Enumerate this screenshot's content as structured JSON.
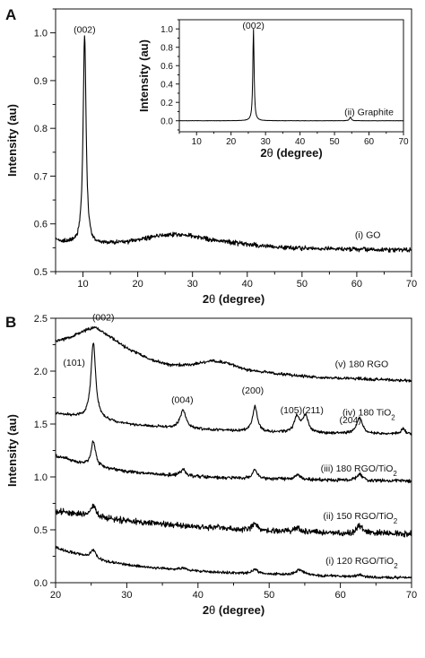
{
  "chart_data": [
    {
      "panel": "A",
      "type": "line",
      "xlabel": "2θ (degree)",
      "ylabel": "Intensity (au)",
      "xlim": [
        5,
        70
      ],
      "ylim": [
        0.5,
        1.05
      ],
      "xticks": [
        10,
        20,
        30,
        40,
        50,
        60,
        70
      ],
      "yticks": [
        0.5,
        0.6,
        0.7,
        0.8,
        0.9,
        1.0
      ],
      "series": [
        {
          "name": "(i) GO",
          "baseline": [
            [
              5,
              0.565
            ],
            [
              9,
              0.558
            ],
            [
              10,
              0.56
            ],
            [
              12,
              0.556
            ],
            [
              15,
              0.56
            ],
            [
              18,
              0.562
            ],
            [
              21,
              0.568
            ],
            [
              24,
              0.576
            ],
            [
              27,
              0.578
            ],
            [
              30,
              0.575
            ],
            [
              33,
              0.568
            ],
            [
              36,
              0.562
            ],
            [
              40,
              0.558
            ],
            [
              45,
              0.552
            ],
            [
              50,
              0.549
            ],
            [
              55,
              0.548
            ],
            [
              60,
              0.547
            ],
            [
              65,
              0.546
            ],
            [
              70,
              0.545
            ]
          ],
          "peaks": [
            {
              "x": 10.3,
              "height": 0.44,
              "width": 0.32
            }
          ],
          "noise": 0.006
        }
      ],
      "annotations": [
        {
          "text": "(002)",
          "x": 10.3,
          "y": 1.0
        },
        {
          "text": "(i) GO",
          "x": 62,
          "y": 0.57
        }
      ],
      "inset": {
        "type": "line",
        "xlabel": "2θ (degree)",
        "ylabel": "Intensity (au)",
        "xlim": [
          5,
          70
        ],
        "ylim": [
          -0.12,
          1.1
        ],
        "xticks": [
          10,
          20,
          30,
          40,
          50,
          60,
          70
        ],
        "yticks": [
          0.0,
          0.2,
          0.4,
          0.6,
          0.8,
          1.0
        ],
        "series": [
          {
            "name": "(ii) Graphite",
            "baseline": [
              [
                5,
                0.0
              ],
              [
                70,
                0.0
              ]
            ],
            "peaks": [
              {
                "x": 26.5,
                "height": 1.0,
                "width": 0.22
              },
              {
                "x": 54.6,
                "height": 0.04,
                "width": 0.3
              }
            ],
            "noise": 0.002
          }
        ],
        "annotations": [
          {
            "text": "(002)",
            "x": 26.5,
            "y": 1.0
          },
          {
            "text": "(ii) Graphite",
            "x": 60,
            "y": 0.06
          }
        ]
      }
    },
    {
      "panel": "B",
      "type": "line",
      "xlabel": "2θ (degree)",
      "ylabel": "Intensity (au)",
      "xlim": [
        20,
        70
      ],
      "ylim": [
        0.0,
        2.5
      ],
      "xticks": [
        20,
        30,
        40,
        50,
        60,
        70
      ],
      "yticks": [
        0.0,
        0.5,
        1.0,
        1.5,
        2.0,
        2.5
      ],
      "series": [
        {
          "name": "(v) 180 RGO",
          "baseline": [
            [
              20,
              2.28
            ],
            [
              22,
              2.32
            ],
            [
              24,
              2.38
            ],
            [
              25.5,
              2.42
            ],
            [
              27,
              2.35
            ],
            [
              30,
              2.22
            ],
            [
              33,
              2.12
            ],
            [
              36,
              2.06
            ],
            [
              39,
              2.06
            ],
            [
              42,
              2.1
            ],
            [
              44,
              2.08
            ],
            [
              47,
              2.01
            ],
            [
              52,
              1.97
            ],
            [
              57,
              1.94
            ],
            [
              62,
              1.93
            ],
            [
              66,
              1.92
            ],
            [
              70,
              1.91
            ]
          ],
          "peaks": [],
          "noise": 0.018
        },
        {
          "name": "(iv) 180 TiO2",
          "baseline": [
            [
              20,
              1.6
            ],
            [
              23,
              1.57
            ],
            [
              30,
              1.5
            ],
            [
              35,
              1.47
            ],
            [
              40,
              1.45
            ],
            [
              50,
              1.42
            ],
            [
              60,
              1.41
            ],
            [
              70,
              1.4
            ]
          ],
          "peaks": [
            {
              "x": 25.3,
              "height": 0.72,
              "width": 0.4
            },
            {
              "x": 37.9,
              "height": 0.17,
              "width": 0.5
            },
            {
              "x": 48.0,
              "height": 0.24,
              "width": 0.4
            },
            {
              "x": 53.9,
              "height": 0.15,
              "width": 0.45
            },
            {
              "x": 55.1,
              "height": 0.16,
              "width": 0.45
            },
            {
              "x": 62.7,
              "height": 0.15,
              "width": 0.5
            },
            {
              "x": 68.8,
              "height": 0.05,
              "width": 0.4
            }
          ],
          "noise": 0.016
        },
        {
          "name": "(iii) 180 RGO/TiO2",
          "baseline": [
            [
              20,
              1.2
            ],
            [
              25,
              1.1
            ],
            [
              30,
              1.05
            ],
            [
              35,
              1.02
            ],
            [
              40,
              1.0
            ],
            [
              50,
              0.98
            ],
            [
              60,
              0.97
            ],
            [
              70,
              0.96
            ]
          ],
          "peaks": [
            {
              "x": 25.3,
              "height": 0.24,
              "width": 0.38
            },
            {
              "x": 37.9,
              "height": 0.06,
              "width": 0.45
            },
            {
              "x": 48.0,
              "height": 0.08,
              "width": 0.4
            },
            {
              "x": 54.0,
              "height": 0.05,
              "width": 0.45
            },
            {
              "x": 62.7,
              "height": 0.06,
              "width": 0.45
            }
          ],
          "noise": 0.02
        },
        {
          "name": "(ii) 150 RGO/TiO2",
          "baseline": [
            [
              20,
              0.68
            ],
            [
              24,
              0.64
            ],
            [
              28,
              0.6
            ],
            [
              32,
              0.57
            ],
            [
              36,
              0.55
            ],
            [
              40,
              0.53
            ],
            [
              45,
              0.51
            ],
            [
              50,
              0.49
            ],
            [
              55,
              0.48
            ],
            [
              60,
              0.47
            ],
            [
              65,
              0.47
            ],
            [
              70,
              0.46
            ]
          ],
          "peaks": [
            {
              "x": 25.3,
              "height": 0.11,
              "width": 0.4
            },
            {
              "x": 48.0,
              "height": 0.06,
              "width": 0.4
            },
            {
              "x": 54.0,
              "height": 0.04,
              "width": 0.45
            },
            {
              "x": 62.7,
              "height": 0.07,
              "width": 0.45
            }
          ],
          "noise": 0.035
        },
        {
          "name": "(i) 120 RGO/TiO2",
          "baseline": [
            [
              20,
              0.33
            ],
            [
              23,
              0.27
            ],
            [
              27,
              0.2
            ],
            [
              30,
              0.17
            ],
            [
              34,
              0.14
            ],
            [
              40,
              0.11
            ],
            [
              45,
              0.09
            ],
            [
              50,
              0.08
            ],
            [
              55,
              0.07
            ],
            [
              60,
              0.06
            ],
            [
              65,
              0.05
            ],
            [
              70,
              0.05
            ]
          ],
          "peaks": [
            {
              "x": 25.3,
              "height": 0.08,
              "width": 0.45
            },
            {
              "x": 37.9,
              "height": 0.02,
              "width": 0.5
            },
            {
              "x": 48.0,
              "height": 0.04,
              "width": 0.5
            },
            {
              "x": 54.3,
              "height": 0.05,
              "width": 0.8
            },
            {
              "x": 62.7,
              "height": 0.02,
              "width": 0.5
            }
          ],
          "noise": 0.016
        }
      ],
      "annotations": [
        {
          "text": "(002)",
          "x": 26.7,
          "y": 2.48
        },
        {
          "text": "(101)",
          "x": 22.6,
          "y": 2.05
        },
        {
          "text": "(004)",
          "x": 37.8,
          "y": 1.7
        },
        {
          "text": "(200)",
          "x": 47.7,
          "y": 1.79
        },
        {
          "text": "(105)(211)",
          "x": 54.6,
          "y": 1.6
        },
        {
          "text": "(204)",
          "x": 61.4,
          "y": 1.51
        },
        {
          "text": "(v) 180 RGO",
          "x": 63,
          "y": 2.04
        },
        {
          "text": "(iv) 180 TiO",
          "sub": "2",
          "x": 64,
          "y": 1.58
        },
        {
          "text": "(iii) 180 RGO/TiO",
          "sub": "2",
          "x": 62.6,
          "y": 1.05
        },
        {
          "text": "(ii) 150 RGO/TiO",
          "sub": "2",
          "x": 62.8,
          "y": 0.6
        },
        {
          "text": "(i) 120 RGO/TiO",
          "sub": "2",
          "x": 63,
          "y": 0.18
        }
      ]
    }
  ],
  "panels": {
    "a_label": "A",
    "b_label": "B"
  }
}
